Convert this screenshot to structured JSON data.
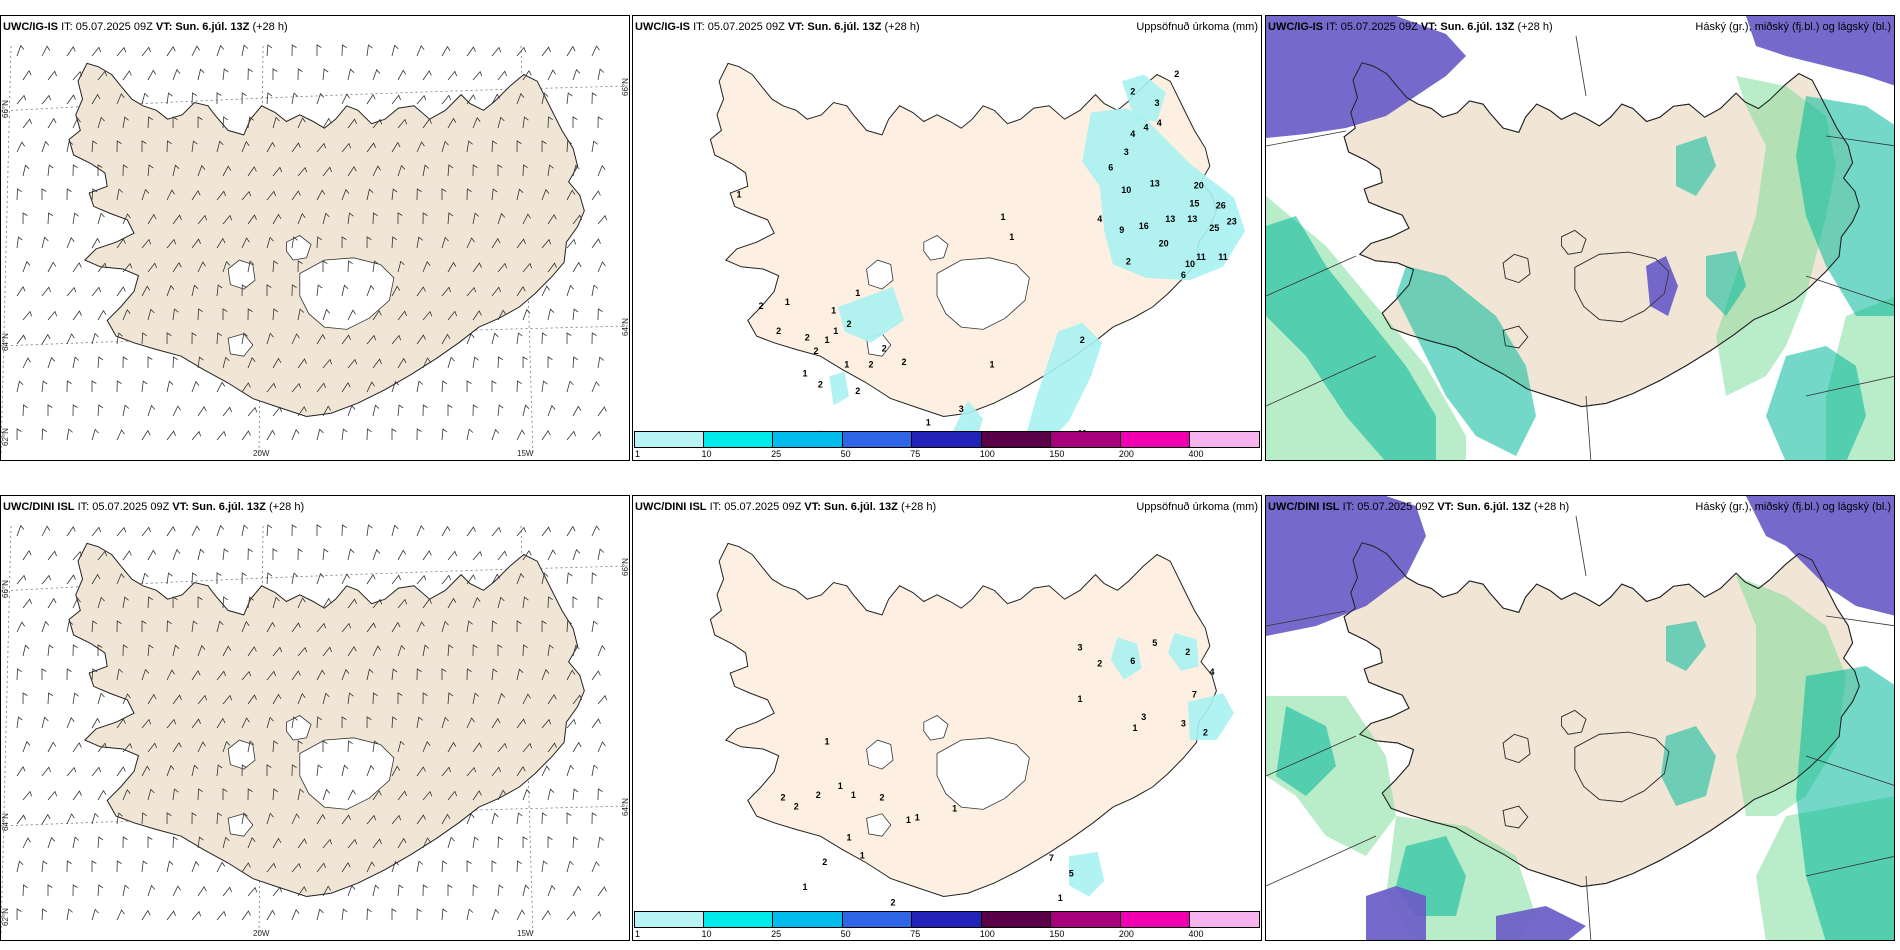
{
  "header_common": "IT: 05.07.2025 09Z",
  "vt_label": "VT: Sun. 6.júl. 13Z",
  "lead": "(+28 h)",
  "rows": [
    {
      "model": "UWC/IG-IS"
    },
    {
      "model": "UWC/DINI ISL"
    }
  ],
  "panel_titles": {
    "precip": "Uppsöfnuð úrkoma (mm)",
    "cloud": "Háský (gr.), miðský (fj.bl.) og lágský (bl.)"
  },
  "axis_labels": {
    "lat66": "66°N",
    "lat64": "64°N",
    "lat62": "62°N",
    "lon20": "20W",
    "lon15": "15W"
  },
  "colorbar": {
    "labels": [
      "1",
      "10",
      "25",
      "50",
      "75",
      "100",
      "150",
      "200",
      "400"
    ],
    "colors": [
      "#b9f4f4",
      "#00eaea",
      "#00bcec",
      "#2f66e8",
      "#2222b8",
      "#5a0048",
      "#a8007a",
      "#f000b0",
      "#f6b4ee"
    ]
  },
  "precip_values_top": [
    "2",
    "2",
    "3",
    "4",
    "4",
    "4",
    "3",
    "6",
    "10",
    "13",
    "20",
    "15",
    "26",
    "13",
    "13",
    "25",
    "23",
    "4",
    "9",
    "16",
    "20",
    "2",
    "10",
    "11",
    "11",
    "6",
    "1",
    "1",
    "1",
    "1",
    "1",
    "1",
    "2",
    "1",
    "2",
    "2",
    "2",
    "2",
    "1",
    "1",
    "2",
    "1",
    "2",
    "2",
    "2",
    "2",
    "1",
    "1",
    "3",
    "1",
    "2",
    "3",
    "16",
    "11",
    "2",
    "1"
  ],
  "precip_values_bottom": [
    "3",
    "5",
    "2",
    "6",
    "2",
    "4",
    "7",
    "1",
    "3",
    "3",
    "1",
    "2",
    "1",
    "2",
    "2",
    "2",
    "1",
    "1",
    "2",
    "1",
    "1",
    "1",
    "1",
    "1",
    "2",
    "1",
    "2",
    "1",
    "3",
    "5",
    "7",
    "5",
    "1"
  ],
  "colors": {
    "land": "#f1e6d6",
    "land_precip": "#fdf0e2",
    "high_cloud": "#6a5cc8",
    "mid_cloud": "#00b89a",
    "low_cloud": "#7fdc9a"
  }
}
